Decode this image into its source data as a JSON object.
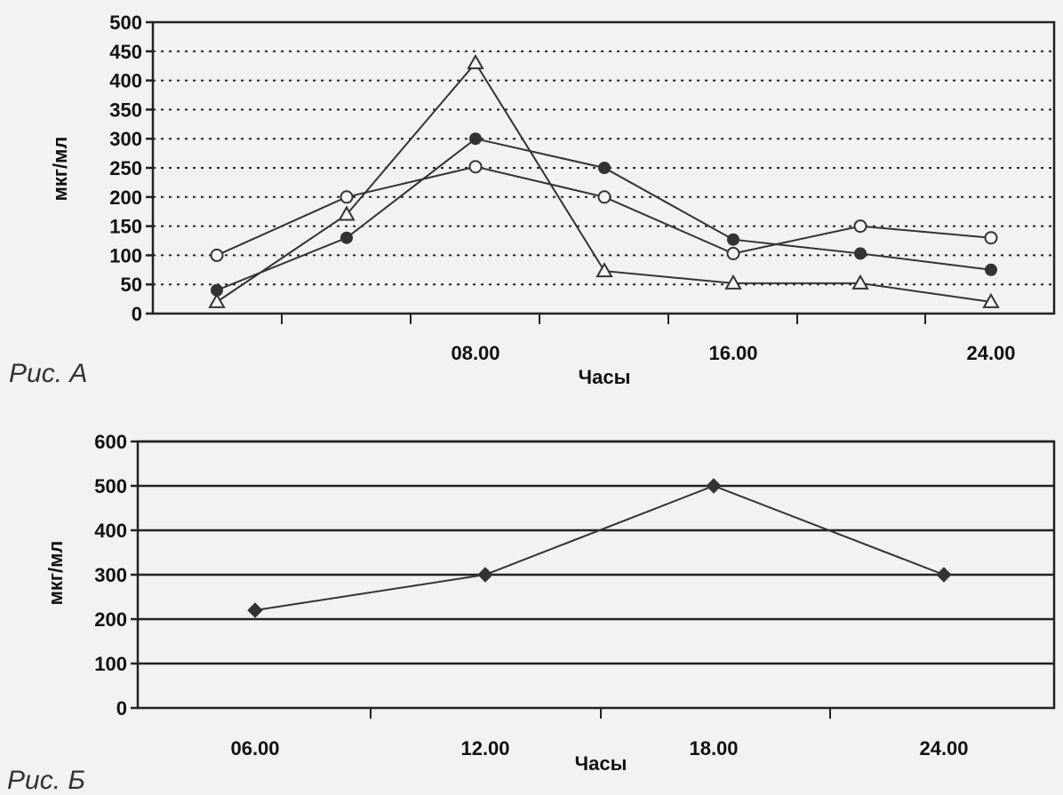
{
  "chart_data": [
    {
      "type": "line",
      "figure_label": "Рис. А",
      "xlabel": "Часы",
      "ylabel": "мкг/мл",
      "ylim": [
        0,
        500
      ],
      "yticks": [
        0,
        50,
        100,
        150,
        200,
        250,
        300,
        350,
        400,
        450,
        500
      ],
      "x_tick_labels": [
        "08.00",
        "16.00",
        "24.00"
      ],
      "grid": "horizontal dotted",
      "series": [
        {
          "marker": "open-circle",
          "values": [
            100,
            200,
            252,
            200,
            103,
            150,
            130
          ]
        },
        {
          "marker": "filled-circle",
          "values": [
            40,
            130,
            300,
            250,
            127,
            103,
            75
          ]
        },
        {
          "marker": "open-triangle",
          "values": [
            20,
            170,
            430,
            73,
            52,
            52,
            20
          ]
        }
      ]
    },
    {
      "type": "line",
      "figure_label": "Рис. Б",
      "xlabel": "Часы",
      "ylabel": "мкг/мл",
      "ylim": [
        0,
        600
      ],
      "yticks": [
        0,
        100,
        200,
        300,
        400,
        500,
        600
      ],
      "x_tick_labels": [
        "06.00",
        "12.00",
        "18.00",
        "24.00"
      ],
      "grid": "horizontal solid",
      "series": [
        {
          "marker": "filled-diamond",
          "values": [
            220,
            300,
            500,
            300
          ]
        }
      ]
    }
  ]
}
